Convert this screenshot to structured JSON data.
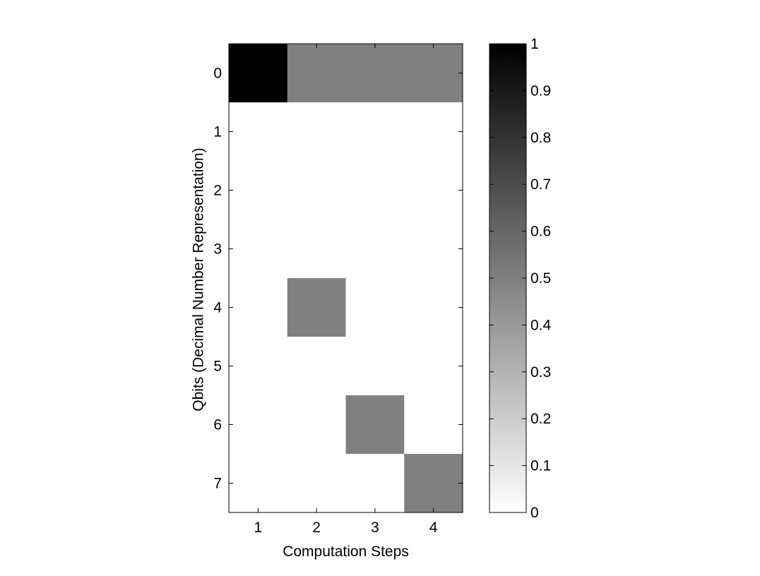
{
  "chart_data": {
    "type": "heatmap",
    "title": "",
    "xlabel": "Computation Steps",
    "ylabel": "Qbits (Decimal Number Representation)",
    "x_categories": [
      "1",
      "2",
      "3",
      "4"
    ],
    "y_categories": [
      "0",
      "1",
      "2",
      "3",
      "4",
      "5",
      "6",
      "7"
    ],
    "values": [
      [
        1.0,
        0.5,
        0.5,
        0.5
      ],
      [
        0,
        0,
        0,
        0
      ],
      [
        0,
        0,
        0,
        0
      ],
      [
        0,
        0,
        0,
        0
      ],
      [
        0,
        0.5,
        0,
        0
      ],
      [
        0,
        0,
        0,
        0
      ],
      [
        0,
        0,
        0.5,
        0
      ],
      [
        0,
        0,
        0,
        0.5
      ]
    ],
    "colorbar": {
      "range": [
        0,
        1
      ],
      "ticks": [
        "0",
        "0.1",
        "0.2",
        "0.3",
        "0.4",
        "0.5",
        "0.6",
        "0.7",
        "0.8",
        "0.9",
        "1"
      ],
      "colormap": "gray-reversed",
      "low_color": "#ffffff",
      "high_color": "#000000"
    },
    "grid": false
  }
}
